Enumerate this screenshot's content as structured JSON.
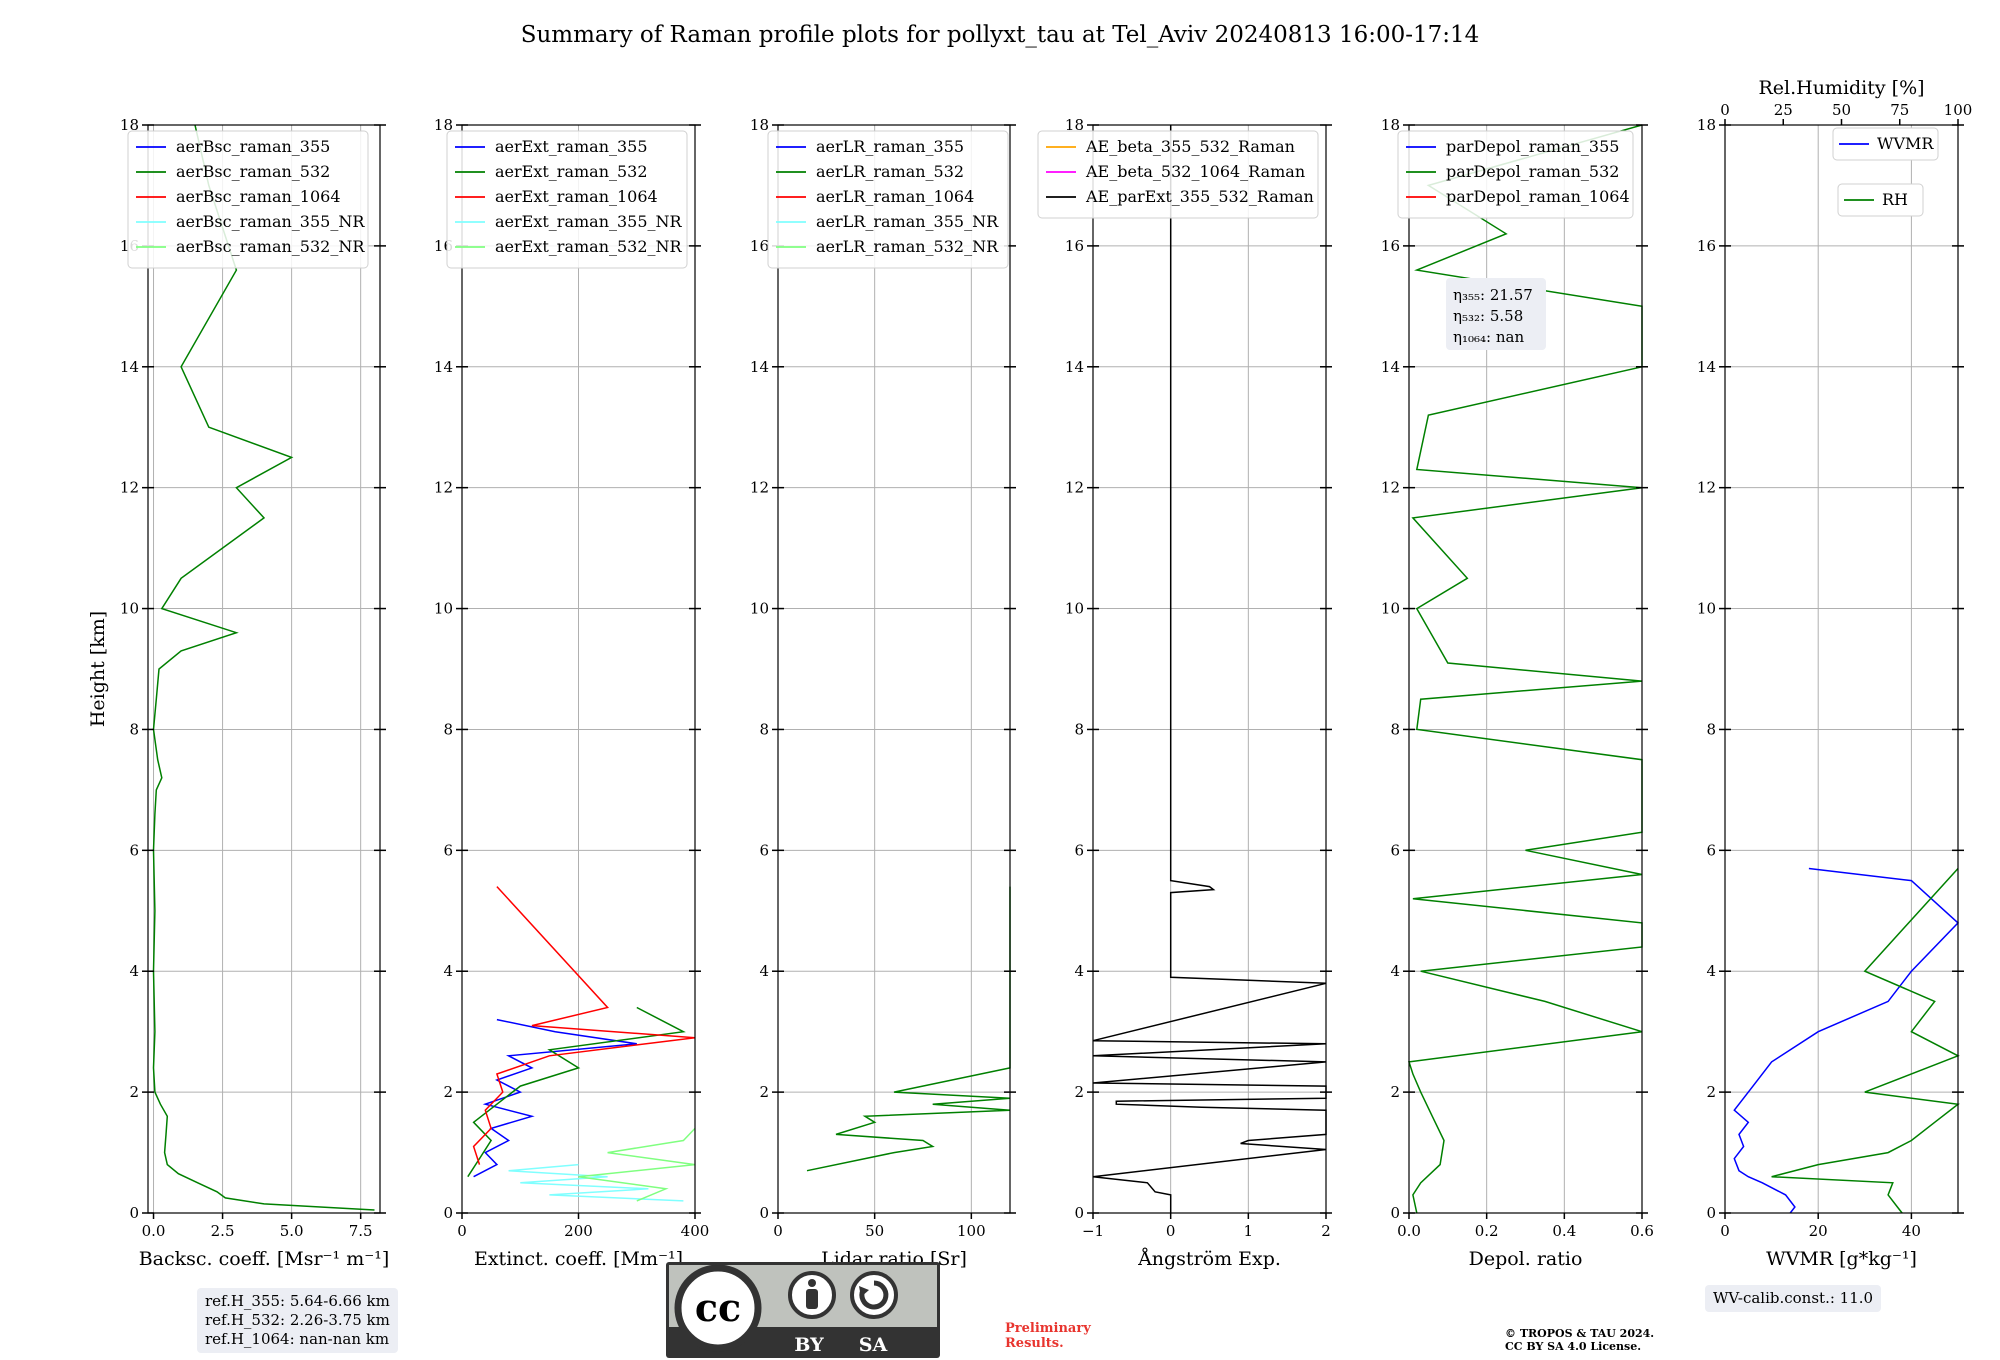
{
  "title": "Summary of Raman profile plots for pollyxt_tau at Tel_Aviv 20240813 16:00-17:14",
  "colors": {
    "c355": "#0000ff",
    "c532": "#008000",
    "c1064": "#ff0000",
    "c355nr": "#80ffff",
    "c532nr": "#80ff80",
    "ae1": "#ffa500",
    "ae2": "#ff00ff",
    "ae3": "#000000"
  },
  "chart_data": [
    {
      "type": "line",
      "ylabel": "Height [km]",
      "xlabel": "Backsc. coeff. [Msr⁻¹ m⁻¹]",
      "xlim": [
        -0.2,
        8.2
      ],
      "ylim": [
        0,
        18
      ],
      "xticks": [
        0,
        2.5,
        5,
        7.5
      ],
      "xtick_labels": [
        "0.0",
        "2.5",
        "5.0",
        "7.5"
      ],
      "yticks": [
        0,
        2,
        4,
        6,
        8,
        10,
        12,
        14,
        16,
        18
      ],
      "grid": true,
      "legend": [
        "aerBsc_raman_355",
        "aerBsc_raman_532",
        "aerBsc_raman_1064",
        "aerBsc_raman_355_NR",
        "aerBsc_raman_532_NR"
      ],
      "legend_colors": [
        "c355",
        "c532",
        "c1064",
        "c355nr",
        "c532nr"
      ],
      "legend_placement": "top-left",
      "series": [
        {
          "color": "c532",
          "y": [
            0.05,
            0.15,
            0.25,
            0.35,
            0.5,
            0.65,
            0.8,
            1.0,
            1.3,
            1.6,
            1.8,
            2.0,
            2.4,
            3.0,
            4.0,
            5.0,
            6.0,
            6.6,
            7.0,
            7.2,
            7.5,
            8.0,
            8.5,
            9.0,
            9.3,
            9.6,
            10.0,
            10.5,
            11.5,
            12.0,
            12.5,
            13.0,
            14.0,
            15.6,
            17.0,
            18.0
          ],
          "x": [
            8.0,
            4.0,
            2.6,
            2.3,
            1.6,
            0.9,
            0.5,
            0.4,
            0.45,
            0.5,
            0.25,
            0.05,
            0.0,
            0.05,
            0.0,
            0.05,
            0.0,
            0.05,
            0.1,
            0.3,
            0.15,
            0.0,
            0.1,
            0.2,
            1.0,
            3.0,
            0.3,
            1.0,
            4.0,
            3.0,
            5.0,
            2.0,
            1.0,
            3.0,
            2.0,
            1.5
          ]
        }
      ]
    },
    {
      "type": "line",
      "xlabel": "Extinct. coeff. [Mm⁻¹]",
      "xlim": [
        0,
        400
      ],
      "ylim": [
        0,
        18
      ],
      "xticks": [
        0,
        200,
        400
      ],
      "xtick_labels": [
        "0",
        "200",
        "400"
      ],
      "yticks": [
        0,
        2,
        4,
        6,
        8,
        10,
        12,
        14,
        16,
        18
      ],
      "grid": true,
      "legend": [
        "aerExt_raman_355",
        "aerExt_raman_532",
        "aerExt_raman_1064",
        "aerExt_raman_355_NR",
        "aerExt_raman_532_NR"
      ],
      "legend_colors": [
        "c355",
        "c532",
        "c1064",
        "c355nr",
        "c532nr"
      ],
      "legend_placement": "top-left",
      "series": [
        {
          "color": "c355",
          "y": [
            0.6,
            0.8,
            1.0,
            1.2,
            1.4,
            1.6,
            1.8,
            2.0,
            2.2,
            2.4,
            2.6,
            2.8,
            3.0,
            3.2
          ],
          "x": [
            20,
            60,
            40,
            80,
            50,
            120,
            40,
            100,
            60,
            120,
            80,
            300,
            160,
            60
          ]
        },
        {
          "color": "c532",
          "y": [
            0.6,
            0.9,
            1.2,
            1.5,
            1.8,
            2.1,
            2.4,
            2.7,
            3.0,
            3.4
          ],
          "x": [
            10,
            30,
            50,
            20,
            60,
            100,
            200,
            150,
            380,
            300
          ]
        },
        {
          "color": "c1064",
          "y": [
            0.8,
            1.1,
            1.4,
            1.7,
            2.0,
            2.3,
            2.6,
            2.9,
            3.1,
            3.4,
            5.4
          ],
          "x": [
            30,
            20,
            50,
            40,
            70,
            60,
            150,
            400,
            120,
            250,
            60
          ]
        },
        {
          "color": "c355nr",
          "y": [
            0.2,
            0.3,
            0.4,
            0.5,
            0.6,
            0.7,
            0.8
          ],
          "x": [
            380,
            150,
            320,
            100,
            250,
            80,
            200
          ]
        },
        {
          "color": "c532nr",
          "y": [
            0.2,
            0.4,
            0.6,
            0.8,
            1.0,
            1.2,
            1.4
          ],
          "x": [
            300,
            350,
            200,
            400,
            250,
            380,
            400
          ]
        }
      ]
    },
    {
      "type": "line",
      "xlabel": "Lidar ratio [Sr]",
      "xlim": [
        0,
        120
      ],
      "ylim": [
        0,
        18
      ],
      "xticks": [
        0,
        50,
        100
      ],
      "xtick_labels": [
        "0",
        "50",
        "100"
      ],
      "yticks": [
        0,
        2,
        4,
        6,
        8,
        10,
        12,
        14,
        16,
        18
      ],
      "grid": true,
      "legend": [
        "aerLR_raman_355",
        "aerLR_raman_532",
        "aerLR_raman_1064",
        "aerLR_raman_355_NR",
        "aerLR_raman_532_NR"
      ],
      "legend_colors": [
        "c355",
        "c532",
        "c1064",
        "c355nr",
        "c532nr"
      ],
      "legend_placement": "top-left",
      "series": [
        {
          "color": "c532",
          "y": [
            0.7,
            1.0,
            1.1,
            1.2,
            1.3,
            1.5,
            1.6,
            1.7,
            1.8,
            1.9,
            2.0,
            2.4,
            2.5,
            2.8,
            3.0,
            3.2,
            3.6,
            3.8,
            5.4
          ],
          "x": [
            15,
            60,
            80,
            75,
            30,
            50,
            45,
            120,
            80,
            120,
            60,
            120,
            120,
            120,
            120,
            120,
            120,
            120,
            120
          ]
        }
      ]
    },
    {
      "type": "line",
      "xlabel": "Ångström Exp.",
      "xlim": [
        -1,
        2
      ],
      "ylim": [
        0,
        18
      ],
      "xticks": [
        -1,
        0,
        1,
        2
      ],
      "xtick_labels": [
        "−1",
        "0",
        "1",
        "2"
      ],
      "yticks": [
        0,
        2,
        4,
        6,
        8,
        10,
        12,
        14,
        16,
        18
      ],
      "grid": true,
      "legend": [
        "AE_beta_355_532_Raman",
        "AE_beta_532_1064_Raman",
        "AE_parExt_355_532_Raman"
      ],
      "legend_colors": [
        "ae1",
        "ae2",
        "ae3"
      ],
      "legend_placement": "top-left",
      "series": [
        {
          "color": "ae3",
          "y": [
            0.0,
            0.3,
            0.35,
            0.5,
            0.6,
            1.05,
            1.15,
            1.2,
            1.3,
            1.7,
            1.75,
            1.8,
            1.85,
            1.9,
            2.1,
            2.15,
            2.5,
            2.6,
            2.8,
            2.85,
            3.8,
            3.9,
            5.3,
            5.35,
            5.4,
            5.5,
            6.0,
            18.0
          ],
          "x": [
            0.0,
            0.0,
            -0.2,
            -0.3,
            -1.0,
            2.0,
            0.9,
            1.0,
            2.0,
            2.0,
            0.4,
            -0.7,
            -0.7,
            2.0,
            2.0,
            -1.0,
            2.0,
            -1.0,
            2.0,
            -1.0,
            2.0,
            0.0,
            0.0,
            0.55,
            0.5,
            0.0,
            0.0,
            0.0
          ]
        }
      ]
    },
    {
      "type": "line",
      "xlabel": "Depol. ratio",
      "xlim": [
        0,
        0.6
      ],
      "ylim": [
        0,
        18
      ],
      "xticks": [
        0,
        0.2,
        0.4,
        0.6
      ],
      "xtick_labels": [
        "0.0",
        "0.2",
        "0.4",
        "0.6"
      ],
      "yticks": [
        0,
        2,
        4,
        6,
        8,
        10,
        12,
        14,
        16,
        18
      ],
      "grid": true,
      "legend": [
        "parDepol_raman_355",
        "parDepol_raman_532",
        "parDepol_raman_1064"
      ],
      "legend_colors": [
        "c355",
        "c532",
        "c1064"
      ],
      "legend_placement": "top-left",
      "annotation": [
        "η₃₅₅: 21.57",
        "η₅₃₂: 5.58",
        "η₁₀₆₄: nan"
      ],
      "series": [
        {
          "color": "c532",
          "y": [
            0.0,
            0.3,
            0.5,
            0.8,
            1.2,
            1.6,
            2.0,
            2.3,
            2.5,
            3.0,
            3.5,
            4.0,
            4.4,
            4.8,
            5.2,
            5.6,
            6.0,
            6.3,
            6.6,
            7.0,
            7.5,
            8.0,
            8.5,
            8.8,
            9.1,
            10.0,
            10.5,
            11.5,
            12.0,
            12.3,
            13.2,
            14.0,
            15.0,
            15.6,
            16.2,
            17.0,
            18.0
          ],
          "x": [
            0.02,
            0.01,
            0.03,
            0.08,
            0.09,
            0.06,
            0.03,
            0.01,
            0.0,
            0.6,
            0.35,
            0.03,
            0.6,
            0.6,
            0.01,
            0.6,
            0.3,
            0.6,
            0.6,
            0.6,
            0.6,
            0.02,
            0.03,
            0.6,
            0.1,
            0.02,
            0.15,
            0.01,
            0.6,
            0.02,
            0.05,
            0.6,
            0.6,
            0.02,
            0.25,
            0.05,
            0.6
          ]
        }
      ]
    },
    {
      "type": "line",
      "xlabel": "WVMR [g*kg⁻¹]",
      "x2label": "Rel.Humidity [%]",
      "xlim": [
        0,
        50
      ],
      "x2lim": [
        0,
        100
      ],
      "ylim": [
        0,
        18
      ],
      "xticks": [
        0,
        20,
        40
      ],
      "xtick_labels": [
        "0",
        "20",
        "40"
      ],
      "x2ticks": [
        0,
        25,
        50,
        75,
        100
      ],
      "x2tick_labels": [
        "0",
        "25",
        "50",
        "75",
        "100"
      ],
      "yticks": [
        0,
        2,
        4,
        6,
        8,
        10,
        12,
        14,
        16,
        18
      ],
      "grid": true,
      "legend": [
        "WVMR",
        "RH"
      ],
      "legend_colors": [
        "c355",
        "c532"
      ],
      "legend_placement": "top-right",
      "annotation_below": "WV-calib.const.: 11.0",
      "series": [
        {
          "color": "c355",
          "y": [
            0.0,
            0.1,
            0.3,
            0.5,
            0.6,
            0.7,
            0.9,
            1.1,
            1.3,
            1.5,
            1.7,
            1.9,
            2.1,
            2.5,
            3.0,
            3.5,
            4.0,
            4.8,
            5.5,
            5.7
          ],
          "x": [
            14,
            15,
            13,
            8,
            5,
            3,
            2,
            4,
            3,
            5,
            2,
            4,
            6,
            10,
            20,
            35,
            40,
            50,
            40,
            18
          ]
        },
        {
          "color": "c532",
          "y": [
            0.0,
            0.1,
            0.3,
            0.5,
            0.6,
            0.8,
            1.0,
            1.2,
            1.5,
            1.8,
            2.0,
            2.6,
            3.0,
            3.5,
            4.0,
            5.7
          ],
          "x": [
            38,
            37,
            35,
            36,
            10,
            20,
            35,
            40,
            45,
            50,
            30,
            50,
            40,
            45,
            30,
            50
          ]
        }
      ]
    }
  ],
  "ref_box": [
    "ref.H_355: 5.64-6.66 km",
    "ref.H_532: 2.26-3.75 km",
    "ref.H_1064: nan-nan km"
  ],
  "badge": {
    "top": "cc",
    "by": "BY",
    "sa": "SA"
  },
  "preliminary": [
    "Preliminary",
    "Results."
  ],
  "copyright": [
    "© TROPOS & TAU 2024.",
    "CC BY SA 4.0 License."
  ]
}
